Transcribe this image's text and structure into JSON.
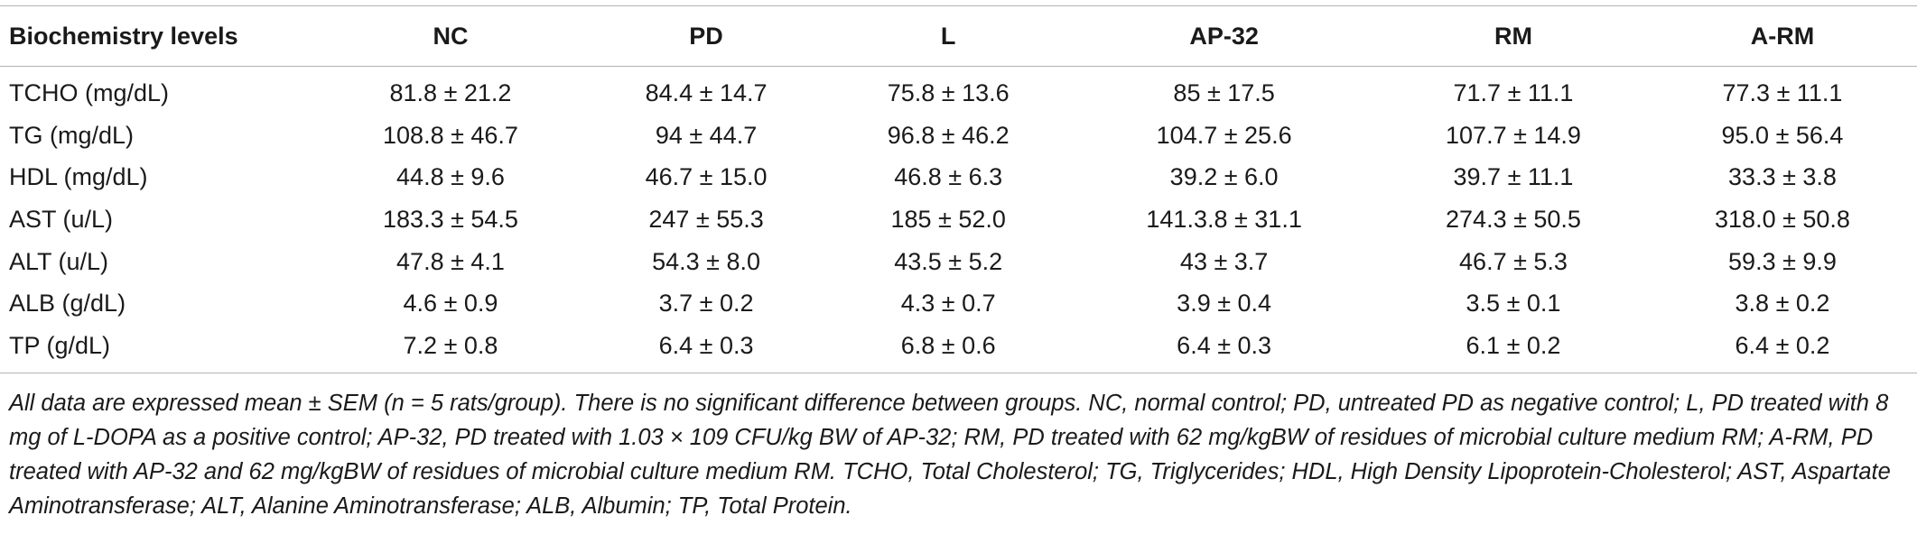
{
  "table": {
    "header_label": "Biochemistry levels",
    "groups": [
      "NC",
      "PD",
      "L",
      "AP-32",
      "RM",
      "A-RM"
    ],
    "rows": [
      {
        "label": "TCHO (mg/dL)",
        "values": [
          "81.8 ± 21.2",
          "84.4 ± 14.7",
          "75.8 ± 13.6",
          "85 ± 17.5",
          "71.7 ± 11.1",
          "77.3 ± 11.1"
        ]
      },
      {
        "label": "TG (mg/dL)",
        "values": [
          "108.8 ± 46.7",
          "94 ± 44.7",
          "96.8 ± 46.2",
          "104.7 ± 25.6",
          "107.7 ± 14.9",
          "95.0 ± 56.4"
        ]
      },
      {
        "label": "HDL (mg/dL)",
        "values": [
          "44.8 ± 9.6",
          "46.7 ± 15.0",
          "46.8 ± 6.3",
          "39.2 ± 6.0",
          "39.7 ± 11.1",
          "33.3 ± 3.8"
        ]
      },
      {
        "label": "AST (u/L)",
        "values": [
          "183.3 ± 54.5",
          "247 ± 55.3",
          "185 ± 52.0",
          "141.3.8 ± 31.1",
          "274.3 ± 50.5",
          "318.0 ± 50.8"
        ]
      },
      {
        "label": "ALT (u/L)",
        "values": [
          "47.8 ± 4.1",
          "54.3 ± 8.0",
          "43.5 ± 5.2",
          "43 ± 3.7",
          "46.7 ± 5.3",
          "59.3 ± 9.9"
        ]
      },
      {
        "label": "ALB (g/dL)",
        "values": [
          "4.6 ± 0.9",
          "3.7 ± 0.2",
          "4.3 ± 0.7",
          "3.9 ± 0.4",
          "3.5 ± 0.1",
          "3.8 ± 0.2"
        ]
      },
      {
        "label": "TP (g/dL)",
        "values": [
          "7.2 ± 0.8",
          "6.4 ± 0.3",
          "6.8 ± 0.6",
          "6.4 ± 0.3",
          "6.1 ± 0.2",
          "6.4 ± 0.2"
        ]
      }
    ]
  },
  "footnote": "All data are expressed mean ± SEM (n = 5 rats/group). There is no significant difference between groups. NC, normal control; PD, untreated PD as negative control; L, PD treated with 8 mg of L-DOPA as a positive control; AP-32, PD treated with 1.03 × 109 CFU/kg BW of AP-32; RM, PD treated with 62 mg/kgBW of residues of microbial culture medium RM; A-RM, PD treated with AP-32 and 62 mg/kgBW of residues of microbial culture medium RM. TCHO, Total Cholesterol; TG, Triglycerides; HDL, High Density Lipoprotein-Cholesterol; AST, Aspartate Aminotransferase; ALT, Alanine Aminotransferase; ALB, Albumin; TP, Total Protein."
}
